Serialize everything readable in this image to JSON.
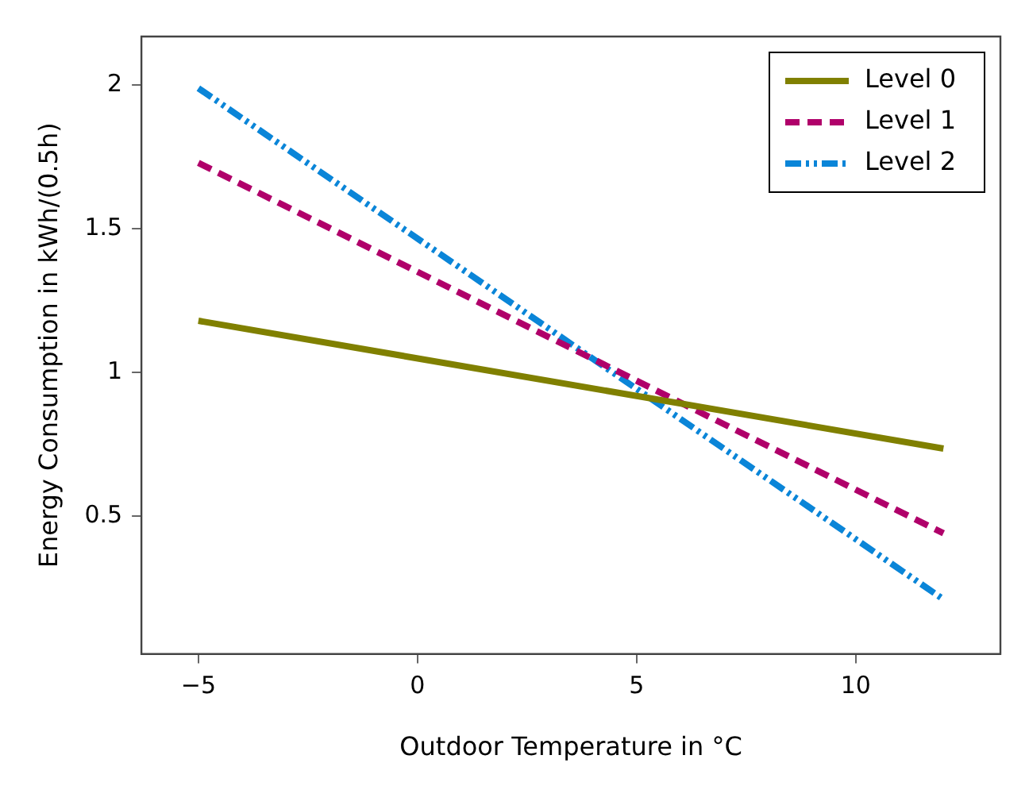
{
  "chart_data": {
    "type": "line",
    "xlabel": "Outdoor Temperature in °C",
    "ylabel": "Energy Consumption in kWh/(0.5h)",
    "x": [
      -5,
      12
    ],
    "series": [
      {
        "name": "Level 0",
        "color": "#808000",
        "values": [
          1.18,
          0.735
        ],
        "line_style": "solid"
      },
      {
        "name": "Level 1",
        "color": "#b0006a",
        "values": [
          1.73,
          0.44
        ],
        "line_style": "dashed"
      },
      {
        "name": "Level 2",
        "color": "#0a85d8",
        "values": [
          1.99,
          0.21
        ],
        "line_style": "dashdotdot"
      }
    ],
    "xlim": [
      -6.3,
      13.3
    ],
    "ylim": [
      0.02,
      2.17
    ],
    "xticks": [
      {
        "value": -5,
        "label": "−5"
      },
      0,
      5,
      10
    ],
    "yticks": [
      0.5,
      1,
      1.5,
      2
    ],
    "grid": false,
    "legend": "top right",
    "marker": "none"
  }
}
